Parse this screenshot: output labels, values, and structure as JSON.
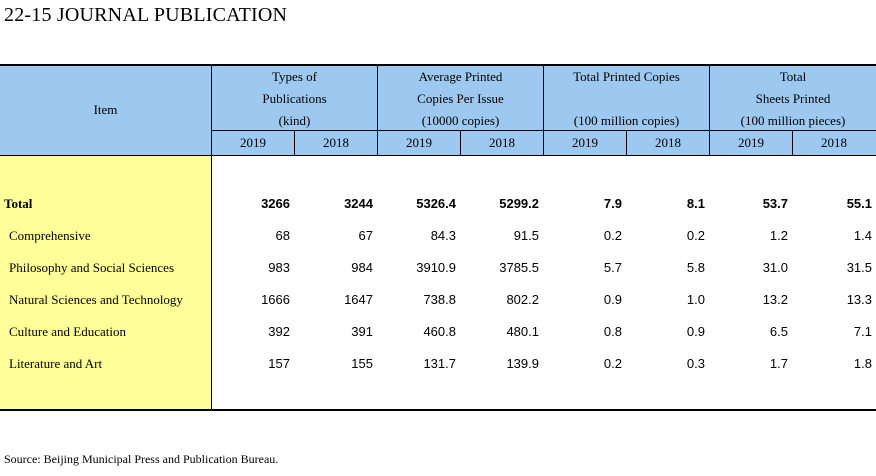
{
  "title": "22-15  JOURNAL PUBLICATION",
  "header": {
    "item": "Item",
    "groups": [
      {
        "lines": [
          "Types of",
          "Publications",
          "(kind)"
        ]
      },
      {
        "lines": [
          "Average Printed",
          "Copies Per Issue",
          "(10000 copies)"
        ]
      },
      {
        "lines": [
          "Total Printed Copies",
          "",
          "(100 million copies)"
        ]
      },
      {
        "lines": [
          "Total",
          "Sheets Printed",
          "(100 million pieces)"
        ]
      }
    ],
    "years": [
      "2019",
      "2018",
      "2019",
      "2018",
      "2019",
      "2018",
      "2019",
      "2018"
    ]
  },
  "rows": [
    {
      "label": "Total",
      "bold": true,
      "values": [
        "3266",
        "3244",
        "5326.4",
        "5299.2",
        "7.9",
        "8.1",
        "53.7",
        "55.1"
      ]
    },
    {
      "label": "Comprehensive",
      "bold": false,
      "values": [
        "68",
        "67",
        "84.3",
        "91.5",
        "0.2",
        "0.2",
        "1.2",
        "1.4"
      ]
    },
    {
      "label": "Philosophy and Social Sciences",
      "bold": false,
      "values": [
        "983",
        "984",
        "3910.9",
        "3785.5",
        "5.7",
        "5.8",
        "31.0",
        "31.5"
      ]
    },
    {
      "label": "Natural Sciences and Technology",
      "bold": false,
      "values": [
        "1666",
        "1647",
        "738.8",
        "802.2",
        "0.9",
        "1.0",
        "13.2",
        "13.3"
      ]
    },
    {
      "label": "Culture and Education",
      "bold": false,
      "values": [
        "392",
        "391",
        "460.8",
        "480.1",
        "0.8",
        "0.9",
        "6.5",
        "7.1"
      ]
    },
    {
      "label": "Literature and Art",
      "bold": false,
      "values": [
        "157",
        "155",
        "131.7",
        "139.9",
        "0.2",
        "0.3",
        "1.7",
        "1.8"
      ]
    }
  ],
  "source": "Source: Beijing Municipal Press and Publication Bureau."
}
